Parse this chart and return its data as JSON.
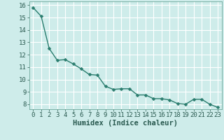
{
  "x": [
    0,
    1,
    2,
    3,
    4,
    5,
    6,
    7,
    8,
    9,
    10,
    11,
    12,
    13,
    14,
    15,
    16,
    17,
    18,
    19,
    20,
    21,
    22,
    23
  ],
  "y": [
    15.8,
    15.1,
    12.5,
    11.55,
    11.6,
    11.25,
    10.85,
    10.4,
    10.35,
    9.45,
    9.2,
    9.25,
    9.25,
    8.75,
    8.75,
    8.45,
    8.45,
    8.35,
    8.05,
    8.0,
    8.4,
    8.4,
    8.0,
    7.75
  ],
  "line_color": "#2a7d6e",
  "marker": "D",
  "marker_size": 2.5,
  "xlabel": "Humidex (Indice chaleur)",
  "ylim_min": 7.6,
  "ylim_max": 16.3,
  "xlim_min": -0.5,
  "xlim_max": 23.5,
  "yticks": [
    8,
    9,
    10,
    11,
    12,
    13,
    14,
    15,
    16
  ],
  "xticks": [
    0,
    1,
    2,
    3,
    4,
    5,
    6,
    7,
    8,
    9,
    10,
    11,
    12,
    13,
    14,
    15,
    16,
    17,
    18,
    19,
    20,
    21,
    22,
    23
  ],
  "xtick_labels": [
    "0",
    "1",
    "2",
    "3",
    "4",
    "5",
    "6",
    "7",
    "8",
    "9",
    "10",
    "11",
    "12",
    "13",
    "14",
    "15",
    "16",
    "17",
    "18",
    "19",
    "20",
    "21",
    "22",
    "23"
  ],
  "background_color": "#ceecea",
  "grid_color": "#e8e8e8",
  "tick_fontsize": 6.5,
  "xlabel_fontsize": 7.5,
  "linewidth": 1.0
}
